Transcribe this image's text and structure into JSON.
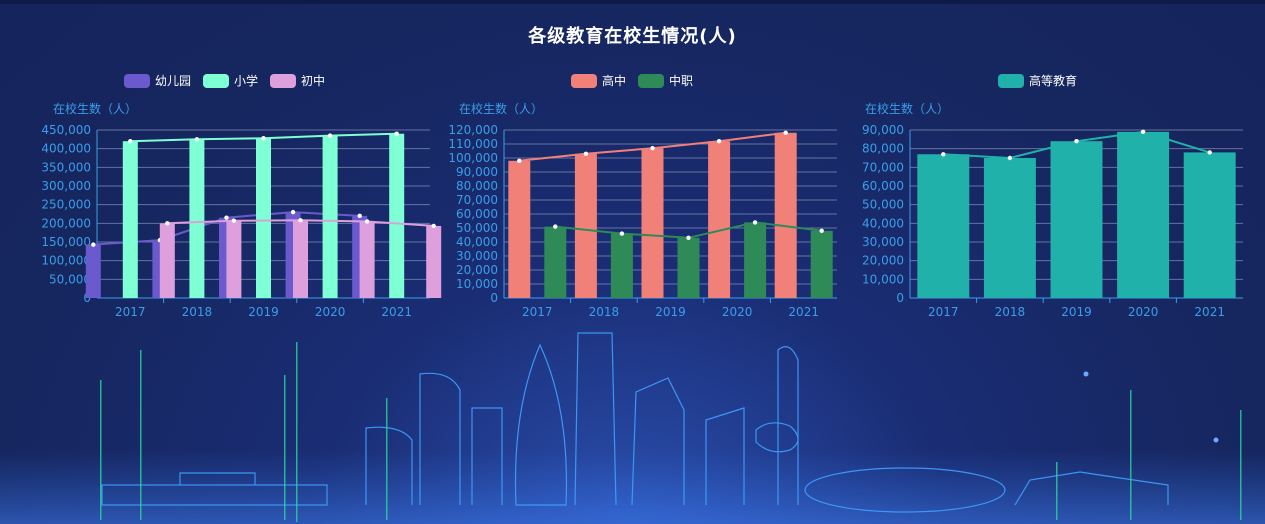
{
  "title": "各级教育在校生情况(人)",
  "colors": {
    "kindergarten": "#6a5acd",
    "primary": "#7fffd4",
    "junior": "#dda0dd",
    "senior": "#f08078",
    "vocational": "#2e8b57",
    "higher": "#20b2aa",
    "axis_text": "#3a9ee8"
  },
  "chart_data": [
    {
      "type": "bar",
      "ylabel": "在校生数（人）",
      "categories": [
        "2017",
        "2018",
        "2019",
        "2020",
        "2021"
      ],
      "ylim": [
        0,
        450000
      ],
      "yticks": [
        "0",
        "50,000",
        "100,000",
        "150,000",
        "200,000",
        "250,000",
        "300,000",
        "350,000",
        "400,000",
        "450,000"
      ],
      "legend_position": "top",
      "series": [
        {
          "name": "幼儿园",
          "color": "#6a5acd",
          "values": [
            143000,
            155000,
            215000,
            230000,
            220000
          ]
        },
        {
          "name": "小学",
          "color": "#7fffd4",
          "values": [
            420000,
            425000,
            428000,
            435000,
            440000
          ]
        },
        {
          "name": "初中",
          "color": "#dda0dd",
          "values": [
            200000,
            207000,
            208000,
            205000,
            193000
          ]
        }
      ]
    },
    {
      "type": "bar",
      "ylabel": "在校生数（人）",
      "categories": [
        "2017",
        "2018",
        "2019",
        "2020",
        "2021"
      ],
      "ylim": [
        0,
        120000
      ],
      "yticks": [
        "0",
        "10,000",
        "20,000",
        "30,000",
        "40,000",
        "50,000",
        "60,000",
        "70,000",
        "80,000",
        "90,000",
        "100,000",
        "110,000",
        "120,000"
      ],
      "legend_position": "top",
      "series": [
        {
          "name": "高中",
          "color": "#f08078",
          "values": [
            98000,
            103000,
            107000,
            112000,
            118000
          ]
        },
        {
          "name": "中职",
          "color": "#2e8b57",
          "values": [
            51000,
            46000,
            43000,
            54000,
            48000
          ]
        }
      ]
    },
    {
      "type": "bar",
      "ylabel": "在校生数（人）",
      "categories": [
        "2017",
        "2018",
        "2019",
        "2020",
        "2021"
      ],
      "ylim": [
        0,
        90000
      ],
      "yticks": [
        "0",
        "10,000",
        "20,000",
        "30,000",
        "40,000",
        "50,000",
        "60,000",
        "70,000",
        "80,000",
        "90,000"
      ],
      "legend_position": "top",
      "series": [
        {
          "name": "高等教育",
          "color": "#20b2aa",
          "values": [
            77000,
            75000,
            84000,
            89000,
            78000
          ]
        }
      ]
    }
  ]
}
